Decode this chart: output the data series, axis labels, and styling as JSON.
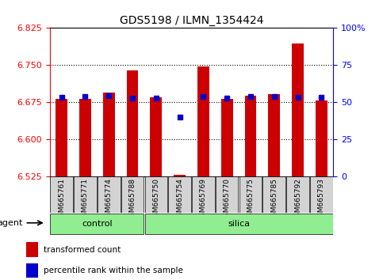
{
  "title": "GDS5198 / ILMN_1354424",
  "samples": [
    "GSM665761",
    "GSM665771",
    "GSM665774",
    "GSM665788",
    "GSM665750",
    "GSM665754",
    "GSM665769",
    "GSM665770",
    "GSM665775",
    "GSM665785",
    "GSM665792",
    "GSM665793"
  ],
  "groups": [
    "control",
    "control",
    "control",
    "control",
    "silica",
    "silica",
    "silica",
    "silica",
    "silica",
    "silica",
    "silica",
    "silica"
  ],
  "bar_values": [
    6.682,
    6.682,
    6.695,
    6.74,
    6.685,
    6.528,
    6.748,
    6.682,
    6.688,
    6.692,
    6.793,
    6.678
  ],
  "blue_dot_values": [
    6.685,
    6.687,
    6.688,
    6.684,
    6.684,
    6.645,
    6.686,
    6.684,
    6.686,
    6.686,
    6.685,
    6.685
  ],
  "ymin": 6.525,
  "ymax": 6.825,
  "yticks_left": [
    6.525,
    6.6,
    6.675,
    6.75,
    6.825
  ],
  "yticks_right_vals": [
    0,
    25,
    50,
    75,
    100
  ],
  "bar_color": "#CC0000",
  "dot_color": "#0000CC",
  "group_bg": "#90EE90",
  "sample_bg": "#D3D3D3",
  "legend_bar_label": "transformed count",
  "legend_dot_label": "percentile rank within the sample",
  "agent_label": "agent",
  "control_label": "control",
  "silica_label": "silica",
  "n_control": 4,
  "n_silica": 8
}
